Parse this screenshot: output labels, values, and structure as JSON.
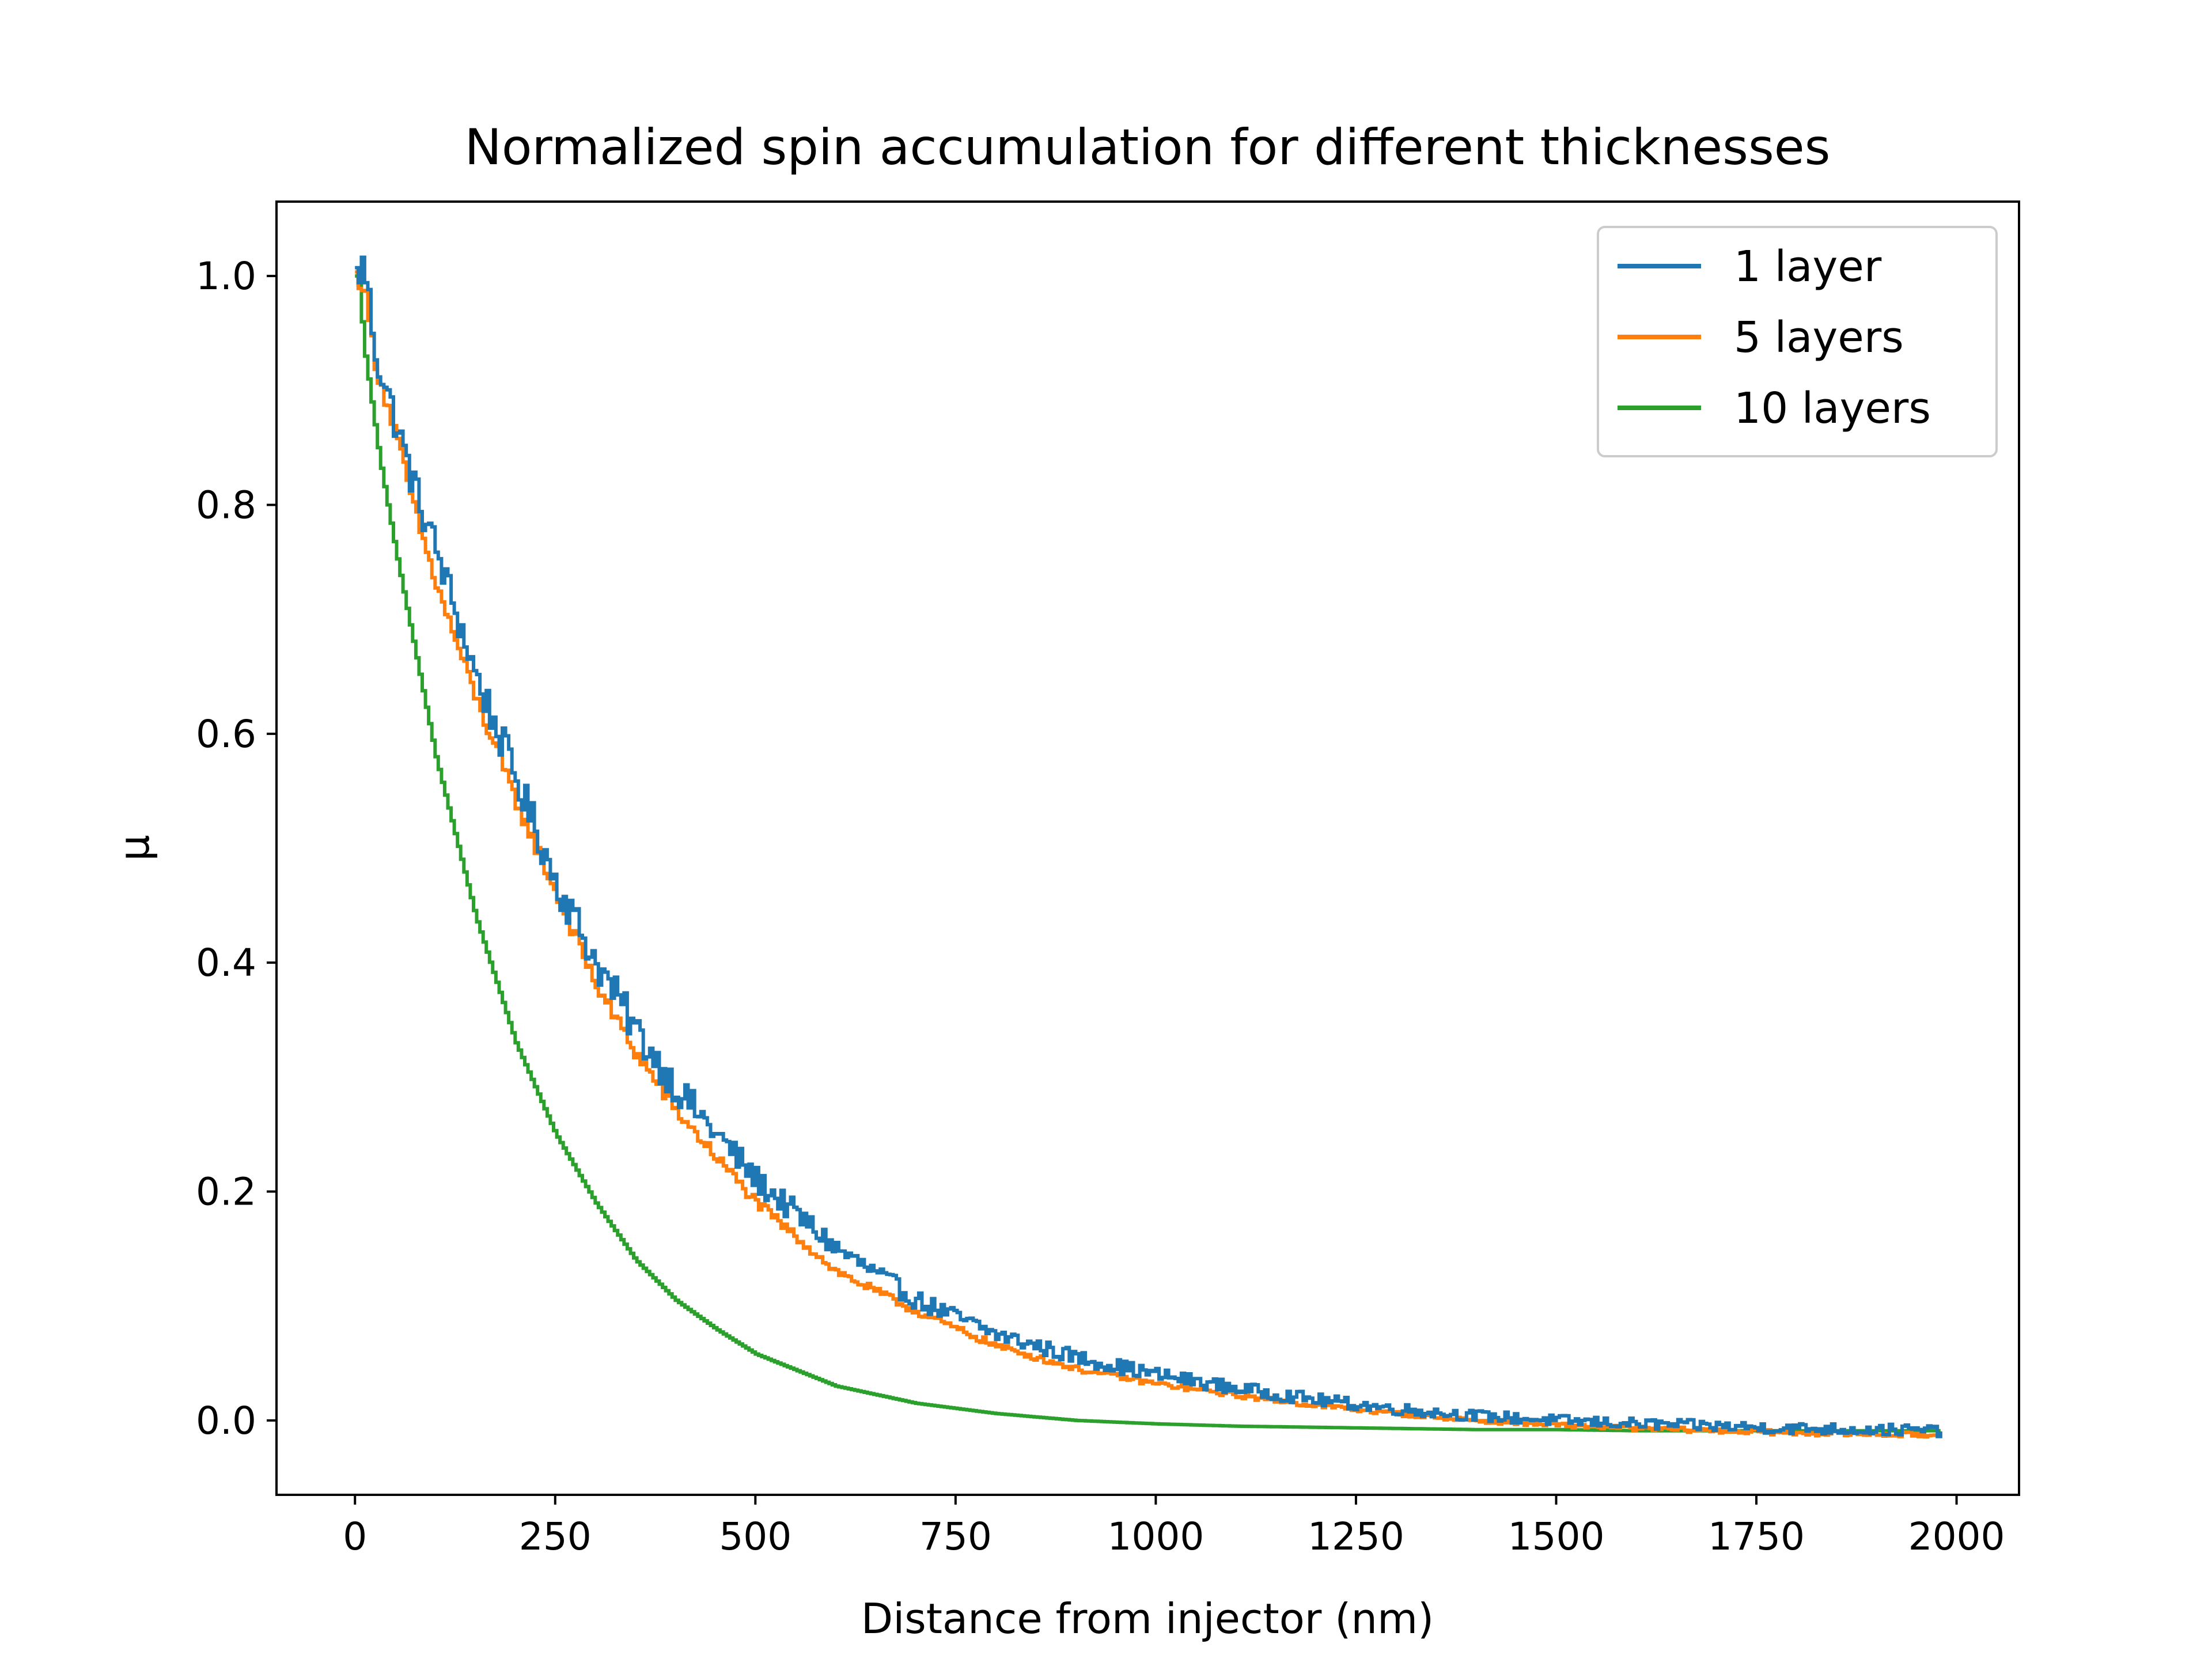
{
  "chart_data": {
    "type": "line",
    "title": "Normalized spin accumulation for different thicknesses",
    "xlabel": "Distance from injector (nm)",
    "ylabel": "μ",
    "xlim": [
      -98,
      2078
    ],
    "ylim": [
      -0.065,
      1.065
    ],
    "xticks": [
      0,
      250,
      500,
      750,
      1000,
      1250,
      1500,
      1750,
      2000
    ],
    "xtick_labels": [
      "0",
      "250",
      "500",
      "750",
      "1000",
      "1250",
      "1500",
      "1750",
      "2000"
    ],
    "yticks": [
      0.0,
      0.2,
      0.4,
      0.6,
      0.8,
      1.0
    ],
    "ytick_labels": [
      "0.0",
      "0.2",
      "0.4",
      "0.6",
      "0.8",
      "1.0"
    ],
    "grid": false,
    "legend_position": "top-right",
    "series": [
      {
        "name": "1 layer",
        "color": "#1f77b4",
        "x": [
          0,
          10,
          25,
          50,
          75,
          100,
          150,
          200,
          250,
          300,
          350,
          400,
          450,
          500,
          600,
          700,
          800,
          900,
          1000,
          1100,
          1200,
          1300,
          1400,
          1500,
          1600,
          1700,
          1800,
          1900,
          1980
        ],
        "y": [
          1.0,
          1.01,
          0.93,
          0.87,
          0.81,
          0.76,
          0.65,
          0.56,
          0.47,
          0.4,
          0.34,
          0.29,
          0.25,
          0.21,
          0.15,
          0.105,
          0.075,
          0.055,
          0.04,
          0.028,
          0.018,
          0.01,
          0.004,
          0.0,
          -0.003,
          -0.005,
          -0.007,
          -0.008,
          -0.009
        ],
        "noise": 0.012
      },
      {
        "name": "5 layers",
        "color": "#ff7f0e",
        "x": [
          0,
          10,
          25,
          50,
          75,
          100,
          150,
          200,
          250,
          300,
          350,
          400,
          450,
          500,
          600,
          700,
          800,
          900,
          1000,
          1100,
          1200,
          1300,
          1400,
          1500,
          1600,
          1700,
          1800,
          1900,
          1980
        ],
        "y": [
          1.0,
          0.99,
          0.92,
          0.86,
          0.79,
          0.73,
          0.63,
          0.54,
          0.46,
          0.38,
          0.32,
          0.27,
          0.23,
          0.19,
          0.13,
          0.095,
          0.065,
          0.045,
          0.032,
          0.022,
          0.013,
          0.006,
          0.0,
          -0.004,
          -0.007,
          -0.009,
          -0.011,
          -0.012,
          -0.013
        ],
        "noise": 0.005
      },
      {
        "name": "10 layers",
        "color": "#2ca02c",
        "x": [
          0,
          5,
          10,
          20,
          30,
          40,
          50,
          75,
          100,
          150,
          200,
          250,
          300,
          350,
          400,
          450,
          500,
          600,
          700,
          800,
          900,
          1000,
          1100,
          1200,
          1300,
          1400,
          1500,
          1600,
          1700,
          1800,
          1900,
          1980
        ],
        "y": [
          1.0,
          0.99,
          0.94,
          0.89,
          0.84,
          0.8,
          0.76,
          0.67,
          0.58,
          0.44,
          0.33,
          0.25,
          0.19,
          0.14,
          0.105,
          0.08,
          0.058,
          0.03,
          0.015,
          0.006,
          0.0,
          -0.003,
          -0.005,
          -0.006,
          -0.007,
          -0.008,
          -0.008,
          -0.009,
          -0.009,
          -0.009,
          -0.009,
          -0.009
        ],
        "noise": 0.0
      }
    ]
  }
}
